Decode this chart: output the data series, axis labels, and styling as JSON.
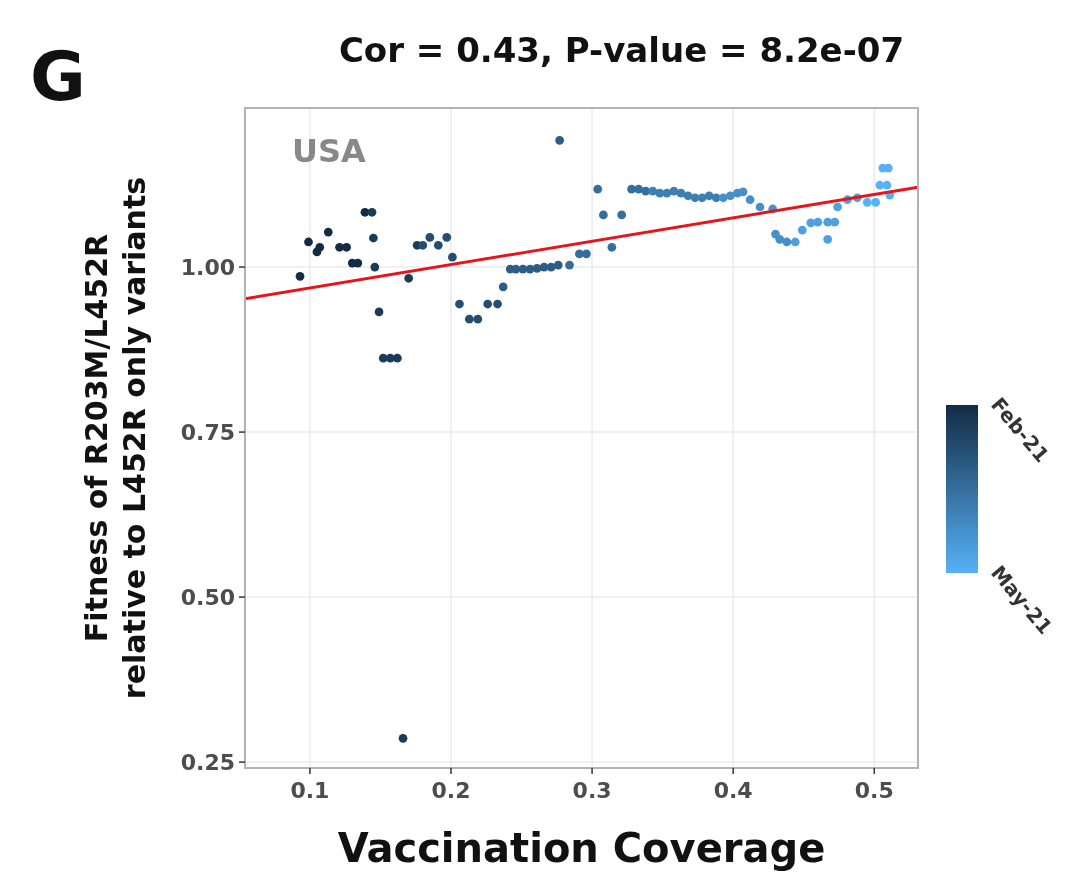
{
  "chart_data": {
    "type": "scatter",
    "title": "Cor = 0.43, P-value = 8.2e-07",
    "annotations": [
      "G",
      "USA"
    ],
    "xlabel": "Vaccination Coverage",
    "ylabel": "Fitness of R203M/L452R\nrelative to L452R only variants",
    "xlim": [
      0.054,
      0.531
    ],
    "xticks": [
      0.1,
      0.2,
      0.3,
      0.4,
      0.5
    ],
    "ylim": [
      0.241,
      1.241
    ],
    "yticks": [
      {
        "value": 0.25,
        "label": "0.25"
      },
      {
        "value": 0.5,
        "label": "0.50"
      },
      {
        "value": 0.75,
        "label": "0.75"
      },
      {
        "value": 1,
        "label": "1.00"
      }
    ],
    "grid": true,
    "clim": [
      "2021-02-01",
      "2021-05-01"
    ],
    "cticks": [
      {
        "value": "2021-02-01",
        "label": "Feb-21"
      },
      {
        "value": "2021-05-01",
        "label": "May-21"
      }
    ],
    "series": [
      {
        "marker": "circle",
        "colors": [
          "#132b43",
          "#132b43",
          "#132b43",
          "#132b43",
          "#132b43",
          "#132b43",
          "#132b43",
          "#132b43",
          "#132b43",
          "#132b43",
          "#1b3c59",
          "#1b3c59",
          "#1b3c59",
          "#1b3c59",
          "#1b3c59",
          "#1b3c59",
          "#1b3c59",
          "#1b3c59",
          "#1b3c59",
          "#1b3c59",
          "#244d70",
          "#244d70",
          "#244d70",
          "#244d70",
          "#244d70",
          "#244d70",
          "#244d70",
          "#244d70",
          "#244d70",
          "#244d70",
          "#2c5d86",
          "#2c5d86",
          "#2c5d86",
          "#2c5d86",
          "#2c5d86",
          "#2c5d86",
          "#2c5d86",
          "#2c5d86",
          "#2c5d86",
          "#2c5d86",
          "#346e9d",
          "#346e9d",
          "#346e9d",
          "#346e9d",
          "#346e9d",
          "#346e9d",
          "#346e9d",
          "#346e9d",
          "#346e9d",
          "#346e9d",
          "#3d7fb3",
          "#3d7fb3",
          "#3d7fb3",
          "#3d7fb3",
          "#3d7fb3",
          "#3d7fb3",
          "#3d7fb3",
          "#3d7fb3",
          "#3d7fb3",
          "#3d7fb3",
          "#4590ca",
          "#4590ca",
          "#4590ca",
          "#4590ca",
          "#4590ca",
          "#4590ca",
          "#4590ca",
          "#4590ca",
          "#4590ca",
          "#4590ca",
          "#4ea0e0",
          "#4ea0e0",
          "#4ea0e0",
          "#4ea0e0",
          "#4ea0e0",
          "#4ea0e0",
          "#4ea0e0",
          "#4ea0e0",
          "#4ea0e0",
          "#4ea0e0",
          "#56b1f7",
          "#56b1f7",
          "#56b1f7",
          "#56b1f7",
          "#56b1f7",
          "#56b1f7",
          "#56b1f7"
        ],
        "x": [
          0.093,
          0.099,
          0.105,
          0.107,
          0.113,
          0.121,
          0.126,
          0.13,
          0.134,
          0.139,
          0.144,
          0.145,
          0.146,
          0.149,
          0.152,
          0.157,
          0.162,
          0.166,
          0.17,
          0.176,
          0.18,
          0.185,
          0.191,
          0.197,
          0.201,
          0.206,
          0.213,
          0.219,
          0.226,
          0.233,
          0.237,
          0.242,
          0.246,
          0.251,
          0.256,
          0.261,
          0.266,
          0.271,
          0.276,
          0.277,
          0.284,
          0.291,
          0.296,
          0.304,
          0.308,
          0.314,
          0.321,
          0.328,
          0.333,
          0.338,
          0.343,
          0.348,
          0.353,
          0.358,
          0.363,
          0.368,
          0.373,
          0.378,
          0.383,
          0.388,
          0.393,
          0.398,
          0.403,
          0.407,
          0.412,
          0.419,
          0.428,
          0.43,
          0.433,
          0.438,
          0.444,
          0.449,
          0.455,
          0.46,
          0.467,
          0.472,
          0.467,
          0.474,
          0.481,
          0.488,
          0.495,
          0.501,
          0.504,
          0.509,
          0.506,
          0.51,
          0.511
        ],
        "values": [
          0.986,
          1.038,
          1.023,
          1.03,
          1.053,
          1.03,
          1.03,
          1.006,
          1.006,
          1.083,
          1.083,
          1.044,
          1.0,
          0.932,
          0.862,
          0.862,
          0.862,
          0.286,
          0.983,
          1.033,
          1.033,
          1.045,
          1.033,
          1.045,
          1.015,
          0.944,
          0.921,
          0.921,
          0.944,
          0.944,
          0.97,
          0.997,
          0.997,
          0.997,
          0.997,
          0.998,
          1.0,
          1.0,
          1.003,
          1.192,
          1.003,
          1.02,
          1.02,
          1.118,
          1.079,
          1.03,
          1.079,
          1.118,
          1.118,
          1.115,
          1.115,
          1.112,
          1.112,
          1.115,
          1.112,
          1.108,
          1.105,
          1.105,
          1.108,
          1.105,
          1.105,
          1.108,
          1.112,
          1.114,
          1.102,
          1.091,
          1.088,
          1.05,
          1.042,
          1.038,
          1.038,
          1.056,
          1.067,
          1.068,
          1.068,
          1.068,
          1.042,
          1.091,
          1.102,
          1.105,
          1.098,
          1.098,
          1.124,
          1.124,
          1.15,
          1.15,
          1.109
        ]
      },
      {
        "type": "line",
        "color": "#e8141c",
        "x": [
          0.054,
          0.531
        ],
        "values": [
          0.952,
          1.121
        ]
      }
    ]
  }
}
